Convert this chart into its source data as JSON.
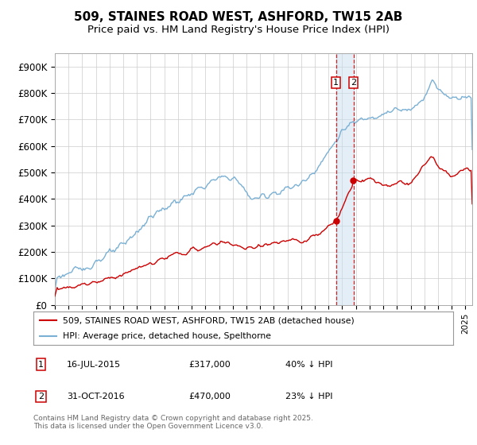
{
  "title": "509, STAINES ROAD WEST, ASHFORD, TW15 2AB",
  "subtitle": "Price paid vs. HM Land Registry's House Price Index (HPI)",
  "ylim": [
    0,
    950000
  ],
  "yticks": [
    0,
    100000,
    200000,
    300000,
    400000,
    500000,
    600000,
    700000,
    800000,
    900000
  ],
  "ytick_labels": [
    "£0",
    "£100K",
    "£200K",
    "£300K",
    "£400K",
    "£500K",
    "£600K",
    "£700K",
    "£800K",
    "£900K"
  ],
  "hpi_color": "#7ab0d4",
  "price_color": "#cc0000",
  "marker1_x": 2015.54,
  "marker2_x": 2016.83,
  "marker1_price": 317000,
  "marker2_price": 470000,
  "marker1_date": "16-JUL-2015",
  "marker2_date": "31-OCT-2016",
  "marker1_hpi_pct": "40% ↓ HPI",
  "marker2_hpi_pct": "23% ↓ HPI",
  "legend_label_price": "509, STAINES ROAD WEST, ASHFORD, TW15 2AB (detached house)",
  "legend_label_hpi": "HPI: Average price, detached house, Spelthorne",
  "footnote": "Contains HM Land Registry data © Crown copyright and database right 2025.\nThis data is licensed under the Open Government Licence v3.0.",
  "background_color": "#ffffff",
  "grid_color": "#cccccc",
  "title_fontsize": 11,
  "subtitle_fontsize": 9.5,
  "tick_fontsize": 8.5
}
